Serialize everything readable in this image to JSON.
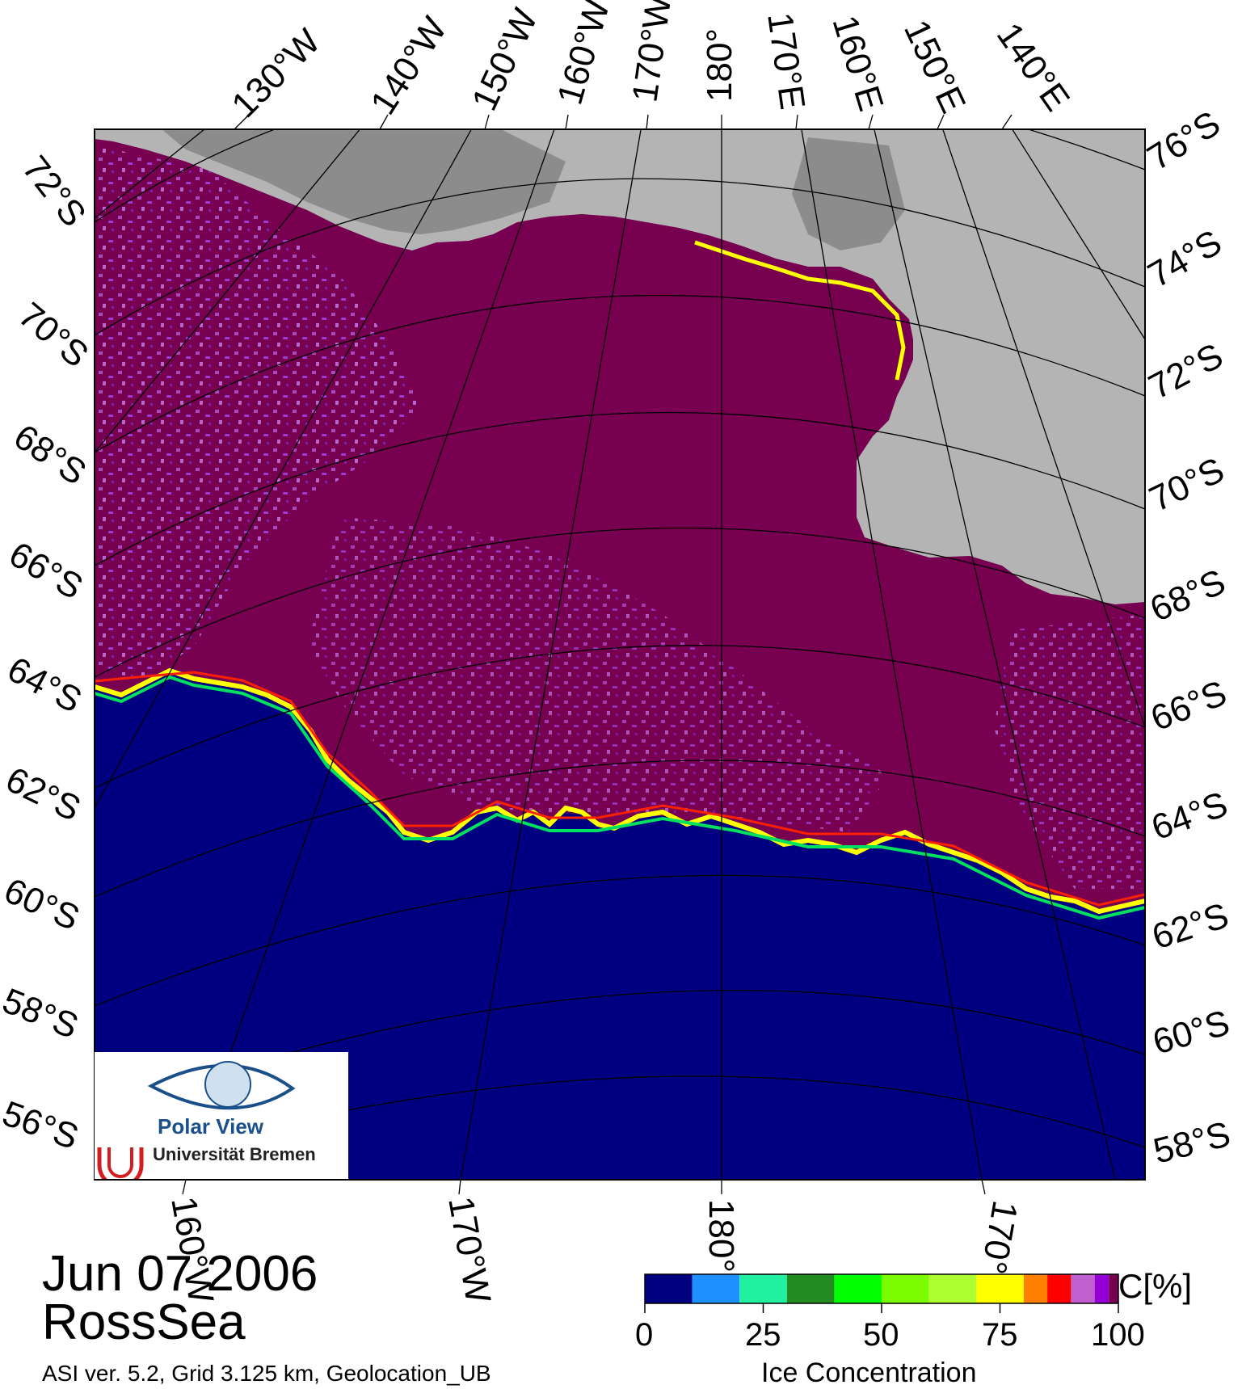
{
  "map": {
    "title_date": "Jun 07 2006",
    "region": "RossSea",
    "footnote": "ASI ver. 5.2,  Grid 3.125 km, Geolocation_UB",
    "top_lon_labels": [
      "130°W",
      "140°W",
      "150°W",
      "160°W",
      "170°W",
      "180°",
      "170°E",
      "160°E",
      "150°E",
      "140°E"
    ],
    "left_lat_labels": [
      "72°S",
      "70°S",
      "68°S",
      "66°S",
      "64°S",
      "62°S",
      "60°S",
      "58°S",
      "56°S"
    ],
    "right_lat_labels": [
      "76°S",
      "74°S",
      "72°S",
      "70°S",
      "68°S",
      "66°S",
      "64°S",
      "62°S",
      "60°S",
      "58°S"
    ],
    "bottom_lon_labels": [
      "160°W",
      "170°W",
      "180°",
      "170°"
    ],
    "colors": {
      "land": "#b4b4b4",
      "ice_shelf": "#8c8c8c",
      "open_water": "#000080",
      "pack_ice": "#780050",
      "grid": "#000000"
    }
  },
  "colorbar": {
    "unit": "C[%]",
    "title": "Ice Concentration",
    "ticks": [
      "0",
      "25",
      "50",
      "75",
      "100"
    ],
    "bins": [
      {
        "from": 0,
        "to": 10,
        "color": "#000080"
      },
      {
        "from": 10,
        "to": 20,
        "color": "#1e90ff"
      },
      {
        "from": 20,
        "to": 30,
        "color": "#20f0a0"
      },
      {
        "from": 30,
        "to": 40,
        "color": "#228b22"
      },
      {
        "from": 40,
        "to": 50,
        "color": "#00ff00"
      },
      {
        "from": 50,
        "to": 60,
        "color": "#7cfc00"
      },
      {
        "from": 60,
        "to": 70,
        "color": "#adff2f"
      },
      {
        "from": 70,
        "to": 80,
        "color": "#ffff00"
      },
      {
        "from": 80,
        "to": 85,
        "color": "#ff8000"
      },
      {
        "from": 85,
        "to": 90,
        "color": "#ff0000"
      },
      {
        "from": 90,
        "to": 95,
        "color": "#c060d0"
      },
      {
        "from": 95,
        "to": 98,
        "color": "#9400d3"
      },
      {
        "from": 98,
        "to": 100,
        "color": "#780050"
      }
    ]
  },
  "logo": {
    "brand": "Polar View",
    "institution": "Universität Bremen"
  }
}
